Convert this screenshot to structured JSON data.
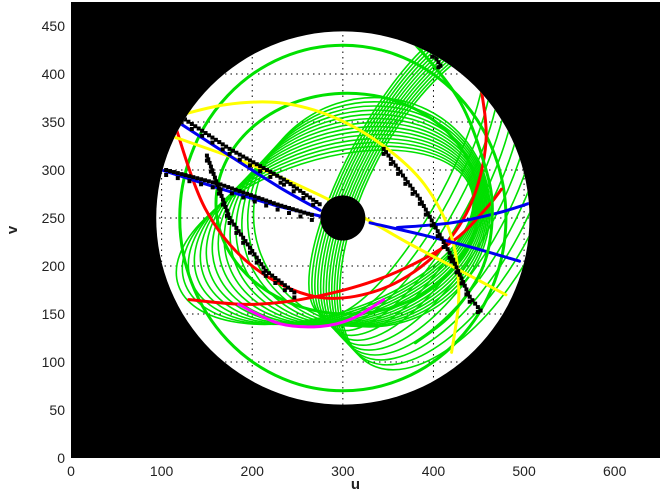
{
  "chart_data": {
    "type": "scatter",
    "title": "",
    "xlabel": "u",
    "ylabel": "v",
    "xlim": [
      0,
      650
    ],
    "ylim": [
      0,
      475
    ],
    "xticks": [
      0,
      100,
      200,
      300,
      400,
      500,
      600
    ],
    "yticks": [
      0,
      50,
      100,
      150,
      200,
      250,
      300,
      350,
      400,
      450
    ],
    "grid": true,
    "grid_style": "dotted",
    "background_color": "#000000",
    "aperture": {
      "center": [
        300,
        250
      ],
      "outer_radius": 200,
      "inner_radius": 22
    },
    "series": [
      {
        "kind": "green-family",
        "color": "#00e000",
        "style": "arc-bundle"
      },
      {
        "kind": "circle",
        "color": "#00e000",
        "center": [
          300,
          250
        ],
        "radius": 180
      },
      {
        "kind": "ellipse",
        "color": "#00e000",
        "center": [
          305,
          265
        ],
        "rx": 145,
        "ry": 115
      },
      {
        "kind": "arc",
        "color": "#ff0000",
        "points": [
          [
            112,
            355
          ],
          [
            148,
            260
          ],
          [
            200,
            200
          ],
          [
            270,
            168
          ],
          [
            340,
            175
          ],
          [
            400,
            210
          ],
          [
            440,
            262
          ],
          [
            458,
            330
          ],
          [
            450,
            400
          ]
        ]
      },
      {
        "kind": "arc",
        "color": "#ff0000",
        "points": [
          [
            130,
            165
          ],
          [
            200,
            160
          ],
          [
            270,
            168
          ],
          [
            350,
            190
          ],
          [
            420,
            225
          ],
          [
            460,
            262
          ],
          [
            475,
            280
          ]
        ]
      },
      {
        "kind": "arc",
        "color": "#ff00ff",
        "points": [
          [
            185,
            160
          ],
          [
            230,
            140
          ],
          [
            275,
            137
          ],
          [
            310,
            145
          ],
          [
            345,
            165
          ]
        ]
      },
      {
        "kind": "arc",
        "color": "#ffff00",
        "points": [
          [
            112,
            355
          ],
          [
            170,
            368
          ],
          [
            230,
            370
          ],
          [
            290,
            355
          ],
          [
            345,
            325
          ],
          [
            390,
            285
          ],
          [
            420,
            230
          ],
          [
            428,
            170
          ],
          [
            420,
            110
          ]
        ]
      },
      {
        "kind": "arc",
        "color": "#ffff00",
        "points": [
          [
            112,
            335
          ],
          [
            200,
            305
          ],
          [
            300,
            262
          ],
          [
            370,
            225
          ],
          [
            430,
            195
          ],
          [
            480,
            170
          ]
        ]
      },
      {
        "kind": "arc",
        "color": "#0000ee",
        "points": [
          [
            118,
            350
          ],
          [
            170,
            318
          ],
          [
            230,
            282
          ],
          [
            275,
            258
          ]
        ]
      },
      {
        "kind": "arc",
        "color": "#0000ee",
        "points": [
          [
            100,
            300
          ],
          [
            160,
            282
          ],
          [
            230,
            262
          ],
          [
            285,
            250
          ]
        ]
      },
      {
        "kind": "arc",
        "color": "#0000ee",
        "points": [
          [
            330,
            245
          ],
          [
            390,
            232
          ],
          [
            440,
            220
          ],
          [
            495,
            205
          ]
        ]
      },
      {
        "kind": "arc",
        "color": "#0000ee",
        "points": [
          [
            360,
            240
          ],
          [
            420,
            245
          ],
          [
            470,
            255
          ],
          [
            505,
            265
          ]
        ]
      },
      {
        "kind": "arc",
        "color": "#00e000",
        "points": [
          [
            340,
            470
          ],
          [
            390,
            420
          ],
          [
            430,
            370
          ],
          [
            455,
            310
          ],
          [
            465,
            260
          ],
          [
            455,
            200
          ],
          [
            420,
            150
          ],
          [
            380,
            120
          ]
        ]
      },
      {
        "kind": "marker-track",
        "color": "#000000",
        "points": [
          [
            122,
            355
          ],
          [
            175,
            322
          ],
          [
            235,
            290
          ],
          [
            278,
            262
          ]
        ]
      },
      {
        "kind": "marker-track",
        "color": "#000000",
        "points": [
          [
            105,
            300
          ],
          [
            165,
            285
          ],
          [
            228,
            264
          ],
          [
            270,
            252
          ]
        ]
      },
      {
        "kind": "marker-track",
        "color": "#000000",
        "points": [
          [
            345,
            322
          ],
          [
            385,
            270
          ],
          [
            420,
            210
          ],
          [
            440,
            168
          ],
          [
            455,
            150
          ]
        ]
      },
      {
        "kind": "marker-track",
        "color": "#000000",
        "points": [
          [
            365,
            468
          ],
          [
            385,
            445
          ],
          [
            410,
            405
          ]
        ]
      },
      {
        "kind": "marker-track",
        "color": "#000000",
        "points": [
          [
            150,
            315
          ],
          [
            175,
            250
          ],
          [
            215,
            195
          ],
          [
            250,
            170
          ]
        ]
      }
    ]
  }
}
